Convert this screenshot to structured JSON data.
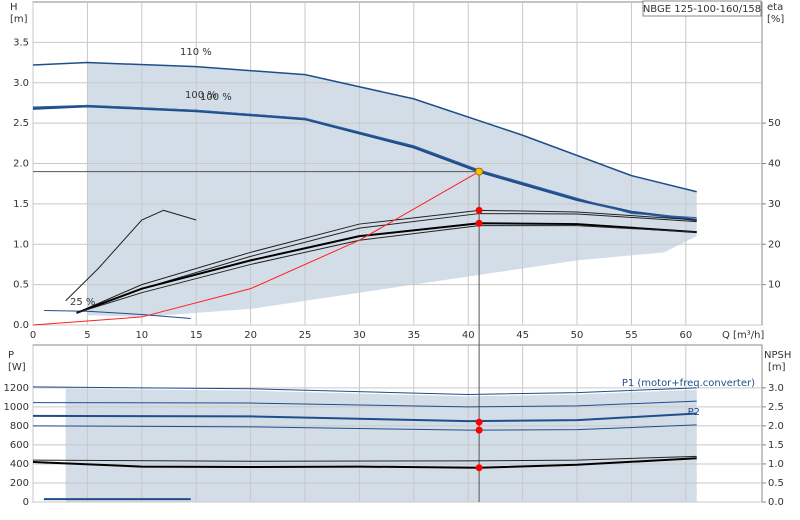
{
  "chart_data": [
    {
      "type": "line",
      "title": "NBGE 125-100-160/158",
      "ylabel": "H",
      "yunit": "[m]",
      "y2label": "eta",
      "y2unit": "[%]",
      "xlabel": "Q [m³/h]",
      "xlim": [
        0,
        67
      ],
      "ylim": [
        0,
        4
      ],
      "y2lim": [
        0,
        80
      ],
      "grid": true,
      "xticks": [
        0,
        5,
        10,
        15,
        20,
        25,
        30,
        35,
        40,
        45,
        50,
        55,
        60
      ],
      "yticks": [
        {
          "value": 0,
          "label": "0.0"
        },
        0.5,
        {
          "value": 1,
          "label": "1.0"
        },
        1.5,
        {
          "value": 2,
          "label": "2.0"
        },
        2.5,
        {
          "value": 3,
          "label": "3.0"
        },
        3.5
      ],
      "y2ticks": [
        10,
        20,
        30,
        40,
        50
      ],
      "envelope": {
        "color": "#d3dde8",
        "x": [
          5,
          15,
          25,
          35,
          45,
          55,
          61,
          61,
          58,
          50,
          40,
          30,
          20,
          10,
          5
        ],
        "y": [
          3.25,
          3.2,
          3.1,
          2.8,
          2.35,
          1.85,
          1.65,
          1.1,
          0.9,
          0.8,
          0.6,
          0.4,
          0.2,
          0.1,
          0.12
        ]
      },
      "series": [
        {
          "name": "110 %",
          "color": "#1f4e8c",
          "width": 1.5,
          "x": [
            0,
            5,
            15,
            25,
            35,
            45,
            55,
            61
          ],
          "values": [
            3.22,
            3.25,
            3.2,
            3.1,
            2.8,
            2.35,
            1.85,
            1.65
          ]
        },
        {
          "name": "100 %",
          "color": "#1f4e8c",
          "width": 2.5,
          "x": [
            0,
            5,
            15,
            25,
            35,
            41,
            50,
            55,
            61
          ],
          "values": [
            2.68,
            2.71,
            2.65,
            2.55,
            2.2,
            1.9,
            1.55,
            1.4,
            1.3
          ]
        },
        {
          "name": "100 %",
          "color": "#2d5f9a",
          "width": 1,
          "x": [
            0,
            5,
            15,
            25,
            35,
            41,
            50,
            55,
            61
          ],
          "values": [
            2.7,
            2.72,
            2.66,
            2.56,
            2.22,
            1.92,
            1.57,
            1.38,
            1.33
          ]
        },
        {
          "name": "25 %",
          "color": "#1f4e8c",
          "width": 1,
          "x": [
            1,
            5,
            10,
            14.5
          ],
          "values": [
            0.18,
            0.17,
            0.13,
            0.08
          ]
        },
        {
          "color": "#222222",
          "width": 1,
          "axis": "y2",
          "x": [
            3,
            6,
            10,
            12,
            15
          ],
          "values": [
            6,
            14,
            26,
            28.4,
            26
          ]
        },
        {
          "color": "#222222",
          "width": 1,
          "axis": "y2",
          "x": [
            4,
            10,
            20,
            30,
            41,
            50,
            61
          ],
          "values": [
            3,
            10,
            18,
            25,
            28.4,
            28,
            26
          ]
        },
        {
          "color": "#222222",
          "width": 1,
          "axis": "y2",
          "x": [
            4,
            10,
            20,
            30,
            41,
            50,
            61
          ],
          "values": [
            3,
            9,
            17,
            24,
            27.6,
            27.5,
            25.6
          ]
        },
        {
          "color": "#000000",
          "width": 2,
          "axis": "y2",
          "x": [
            4,
            10,
            20,
            30,
            41,
            50,
            61
          ],
          "values": [
            3,
            9,
            16,
            22,
            25.2,
            25,
            23
          ]
        },
        {
          "color": "#222222",
          "width": 1,
          "axis": "y2",
          "x": [
            4,
            10,
            20,
            30,
            41,
            50,
            61
          ],
          "values": [
            3,
            8,
            15,
            21,
            24.6,
            24.6,
            23
          ]
        },
        {
          "color": "#ff2020",
          "width": 1,
          "x": [
            0,
            10,
            20,
            30,
            41
          ],
          "values": [
            0,
            0.1,
            0.45,
            1.05,
            1.9
          ]
        }
      ],
      "points": [
        {
          "x": 41,
          "y": 1.9,
          "color": "#ffc000",
          "guide": true
        },
        {
          "x": 41,
          "y": 28.4,
          "axis": "y2",
          "color": "#ff0000"
        },
        {
          "x": 41,
          "y": 25.2,
          "axis": "y2",
          "color": "#ff0000"
        }
      ]
    },
    {
      "type": "line",
      "ylabel": "P",
      "yunit": "[W]",
      "y2label": "NPSH",
      "y2unit": "[m]",
      "xlim": [
        0,
        67
      ],
      "ylim": [
        0,
        1650
      ],
      "y2lim": [
        0,
        4.125
      ],
      "grid": true,
      "yticks": [
        0,
        200,
        400,
        600,
        800,
        1000,
        1200
      ],
      "y2ticks": [
        {
          "value": 0,
          "label": "0.0"
        },
        0.5,
        {
          "value": 1,
          "label": "1.0"
        },
        1.5,
        {
          "value": 2,
          "label": "2.0"
        },
        2.5,
        {
          "value": 3,
          "label": "3.0"
        }
      ],
      "envelope": {
        "color": "#d3dde8",
        "x": [
          3,
          20,
          40,
          50,
          61,
          61,
          3
        ],
        "y": [
          1190,
          1170,
          1110,
          1130,
          1180,
          0,
          0
        ]
      },
      "series": [
        {
          "name": "P1 (motor+freq.converter)",
          "color": "#1f4e8c",
          "width": 1,
          "x": [
            0,
            20,
            40,
            50,
            61
          ],
          "values": [
            1210,
            1190,
            1130,
            1150,
            1200
          ]
        },
        {
          "color": "#1f4e8c",
          "width": 1,
          "x": [
            0,
            20,
            40,
            50,
            61
          ],
          "values": [
            1045,
            1040,
            1000,
            1010,
            1060
          ]
        },
        {
          "name": "P2",
          "color": "#1f4e8c",
          "width": 2,
          "x": [
            0,
            20,
            40,
            50,
            61
          ],
          "values": [
            905,
            900,
            850,
            860,
            930
          ]
        },
        {
          "color": "#1f4e8c",
          "width": 1,
          "x": [
            0,
            20,
            40,
            50,
            61
          ],
          "values": [
            800,
            790,
            755,
            760,
            810
          ]
        },
        {
          "color": "#1f4e8c",
          "width": 2,
          "x": [
            1,
            14.5
          ],
          "values": [
            30,
            30
          ]
        },
        {
          "color": "#222222",
          "width": 1,
          "axis": "y2",
          "x": [
            0,
            20,
            40,
            50,
            61
          ],
          "values": [
            1.1,
            1.07,
            1.08,
            1.1,
            1.2
          ]
        },
        {
          "color": "#000000",
          "width": 2,
          "axis": "y2",
          "x": [
            0,
            10,
            20,
            30,
            41,
            50,
            61
          ],
          "values": [
            1.05,
            0.93,
            0.92,
            0.93,
            0.9,
            0.98,
            1.15
          ]
        }
      ],
      "points": [
        {
          "x": 41,
          "y": 840,
          "color": "#ff0000"
        },
        {
          "x": 41,
          "y": 755,
          "color": "#ff0000"
        },
        {
          "x": 41,
          "y": 0.9,
          "axis": "y2",
          "color": "#ff0000"
        }
      ]
    }
  ]
}
